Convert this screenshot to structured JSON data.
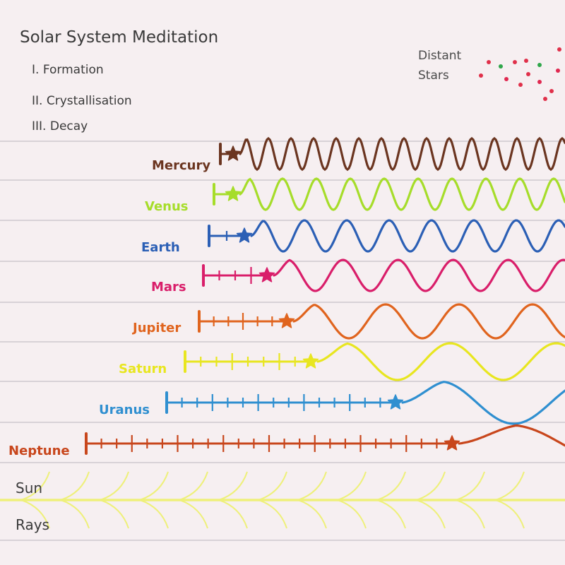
{
  "title": "Solar System Meditation",
  "sections": [
    "I. Formation",
    "II. Crystallisation",
    "III. Decay"
  ],
  "distant_stars": {
    "label_line1": "Distant",
    "label_line2": "Stars",
    "colors": [
      "#e0304a",
      "#2fa64a",
      "#e02850"
    ]
  },
  "paper_color": "#f6eff1",
  "rule_color": "#b9b6bd",
  "planets": [
    {
      "name": "Mercury",
      "color": "#6b3520"
    },
    {
      "name": "Venus",
      "color": "#a6dd2a"
    },
    {
      "name": "Earth",
      "color": "#2b5fb5"
    },
    {
      "name": "Mars",
      "color": "#d91e6a"
    },
    {
      "name": "Jupiter",
      "color": "#e0641e"
    },
    {
      "name": "Saturn",
      "color": "#e8e620"
    },
    {
      "name": "Uranus",
      "color": "#2f8fd0"
    },
    {
      "name": "Neptune",
      "color": "#c8461c"
    }
  ],
  "sun_rays": {
    "label_line1": "Sun",
    "label_line2": "Rays",
    "color": "#eef07a"
  }
}
